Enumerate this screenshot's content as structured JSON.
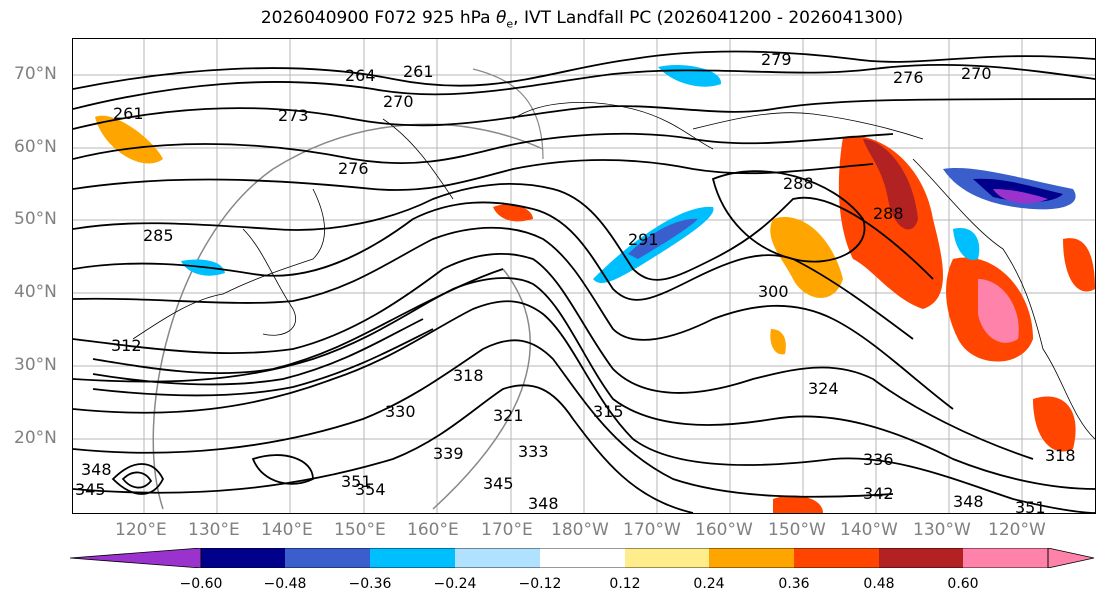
{
  "title": {
    "prefix": "2026040900 F072 925 hPa ",
    "theta": "θ",
    "sub": "e",
    "suffix": ", IVT Landfall PC (2026041200 - 2026041300)"
  },
  "map": {
    "lat_labels": [
      "70°N",
      "60°N",
      "50°N",
      "40°N",
      "30°N",
      "20°N"
    ],
    "lon_labels": [
      "120°E",
      "130°E",
      "140°E",
      "150°E",
      "160°E",
      "170°E",
      "180°W",
      "170°W",
      "160°W",
      "150°W",
      "140°W",
      "130°W",
      "120°W"
    ],
    "contour_labels": [
      "264",
      "261",
      "270",
      "273",
      "261",
      "276",
      "279",
      "276",
      "270",
      "285",
      "288",
      "291",
      "288",
      "300",
      "318",
      "330",
      "321",
      "315",
      "324",
      "333",
      "336",
      "339",
      "345",
      "348",
      "351",
      "354",
      "342",
      "348",
      "351",
      "318",
      "312",
      "345",
      "348"
    ],
    "contour_color": "#000000"
  },
  "colorbar": {
    "ticks": [
      "−0.60",
      "−0.48",
      "−0.36",
      "−0.24",
      "−0.12",
      "0.12",
      "0.24",
      "0.36",
      "0.48",
      "0.60"
    ],
    "colors": [
      "#9a32cd",
      "#00008b",
      "#3a5fcd",
      "#00bfff",
      "#b0e2ff",
      "#ffffff",
      "#ffec8b",
      "#ffa500",
      "#ff4500",
      "#b22222",
      "#ff82ab",
      "#ff82ab"
    ]
  }
}
